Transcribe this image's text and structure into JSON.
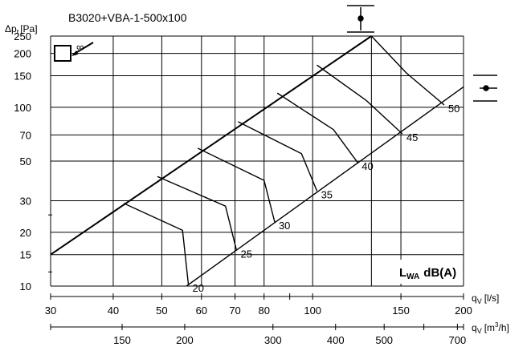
{
  "chart_data": {
    "type": "line",
    "title": "B3020+VBA-1-500x100",
    "ylabel_main": "Δp",
    "ylabel_sub": "t",
    "ylabel_unit": "[Pa]",
    "xlabel_ls_main": "q",
    "xlabel_ls_sub": "V",
    "xlabel_ls_unit": "[l/s]",
    "xlabel_m3h_main": "q",
    "xlabel_m3h_sub": "V",
    "xlabel_m3h_unit_pre": "[m",
    "xlabel_m3h_unit_sup": "3",
    "xlabel_m3h_unit_post": "/h]",
    "lwa_main": "L",
    "lwa_sub": "WA",
    "lwa_unit": "dB(A)",
    "x_scale": "log",
    "y_scale": "log",
    "xlim_ls": [
      30,
      200
    ],
    "ylim": [
      10,
      250
    ],
    "grid": true,
    "x_ticks_ls": [
      "30",
      "40",
      "50",
      "60",
      "70",
      "80",
      "100",
      "150",
      "200"
    ],
    "x_ticks_m3h": [
      "150",
      "200",
      "300",
      "400",
      "500",
      "700"
    ],
    "y_ticks": [
      "10",
      "15",
      "20",
      "30",
      "50",
      "70",
      "100",
      "150",
      "200",
      "250"
    ],
    "upper_limit_line": {
      "x": [
        30,
        131
      ],
      "y": [
        15,
        250
      ]
    },
    "lower_limit_line": {
      "x": [
        56,
        200
      ],
      "y": [
        10,
        130
      ]
    },
    "sound_curves": [
      {
        "label": "20",
        "x": [
          42,
          55,
          56.5
        ],
        "y": [
          29,
          20.5,
          10.2
        ]
      },
      {
        "label": "25",
        "x": [
          49,
          67,
          70.5
        ],
        "y": [
          41,
          28,
          15.8
        ]
      },
      {
        "label": "30",
        "x": [
          59,
          80,
          84
        ],
        "y": [
          59,
          39,
          22.8
        ]
      },
      {
        "label": "35",
        "x": [
          71,
          95,
          102
        ],
        "y": [
          83,
          55,
          34
        ]
      },
      {
        "label": "40",
        "x": [
          85,
          110,
          123
        ],
        "y": [
          120,
          75,
          49
        ]
      },
      {
        "label": "45",
        "x": [
          102,
          128,
          151
        ],
        "y": [
          172,
          109,
          71
        ]
      },
      {
        "label": "50",
        "x": [
          131,
          154,
          183
        ],
        "y": [
          250,
          155,
          103
        ]
      }
    ]
  },
  "legend_symbols": {
    "top_symbol": "vertical-limit-marker-icon",
    "right_symbol": "horizontal-limit-marker-icon",
    "corner_symbol": "diffuser-outlet-icon",
    "corner_text": "∞"
  }
}
